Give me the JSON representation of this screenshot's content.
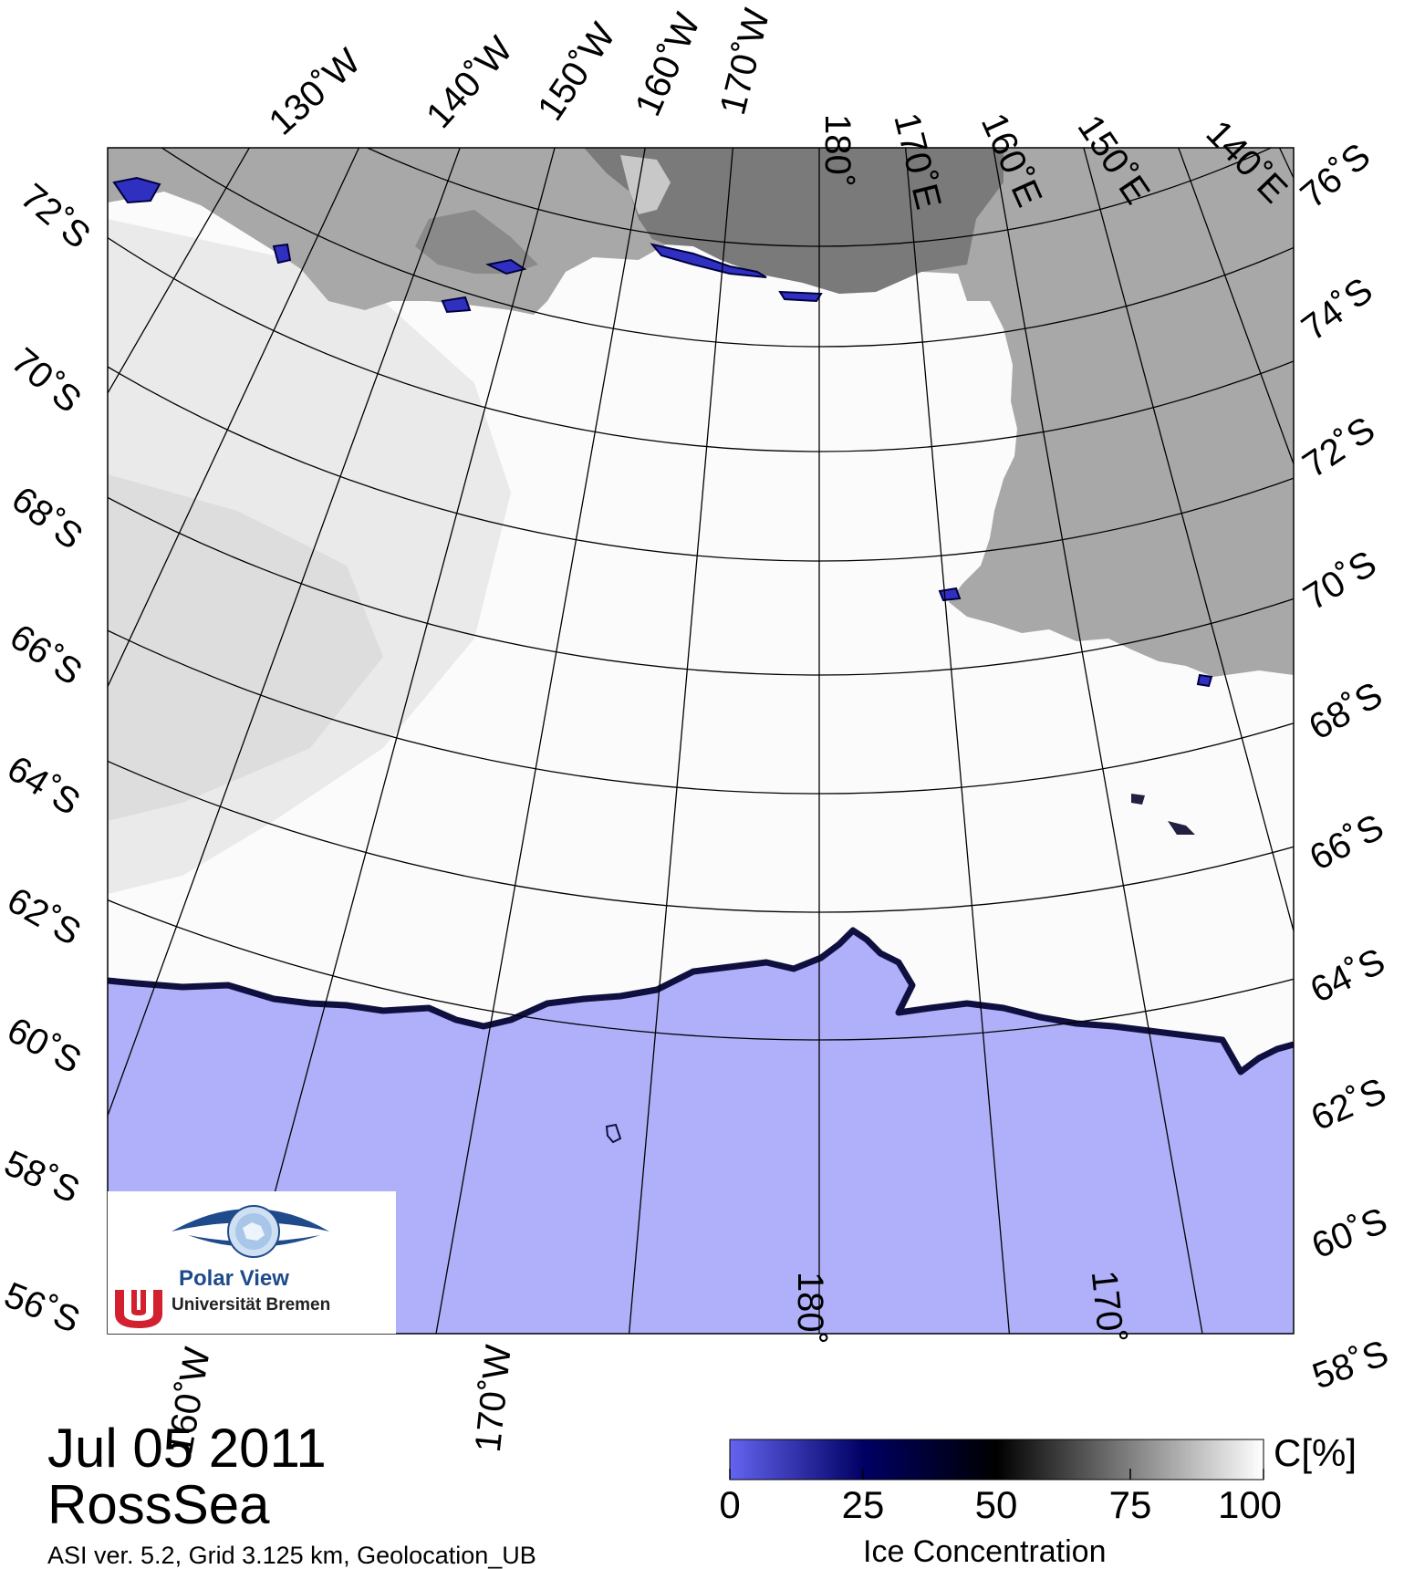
{
  "date": "Jul 05 2011",
  "region": "RossSea",
  "info_line": "ASI ver. 5.2,  Grid 3.125 km, Geolocation_UB",
  "logo": {
    "title": "Polar View",
    "subtitle": "Universität Bremen",
    "icon": "eye-globe-logo",
    "emblem": "university-bremen-emblem"
  },
  "colorbar": {
    "unit": "C[%]",
    "title": "Ice Concentration",
    "ticks": [
      "0",
      "25",
      "50",
      "75",
      "100"
    ],
    "colors": [
      "#6464f0",
      "#000064",
      "#000000",
      "#808080",
      "#ffffff"
    ]
  },
  "map": {
    "top_lon_labels": [
      "130˚W",
      "140˚W",
      "150˚W",
      "160˚W",
      "170˚W",
      "180˚",
      "170˚E",
      "160˚E",
      "150˚E",
      "140˚E"
    ],
    "bottom_lon_labels": [
      "160˚W",
      "170˚W",
      "180˚",
      "170˚"
    ],
    "left_lat_labels": [
      "72˚S",
      "70˚S",
      "68˚S",
      "66˚S",
      "64˚S",
      "62˚S",
      "60˚S",
      "58˚S",
      "56˚S"
    ],
    "right_lat_labels": [
      "76˚S",
      "74˚S",
      "72˚S",
      "70˚S",
      "68˚S",
      "66˚S",
      "64˚S",
      "62˚S",
      "60˚S",
      "58˚S"
    ],
    "colors": {
      "land": "#a8a8a8",
      "ice_shelf": "#7a7a7a",
      "ice": "#ffffff",
      "open_water": "#b0b0fa",
      "ice_edge": "#101040"
    }
  }
}
